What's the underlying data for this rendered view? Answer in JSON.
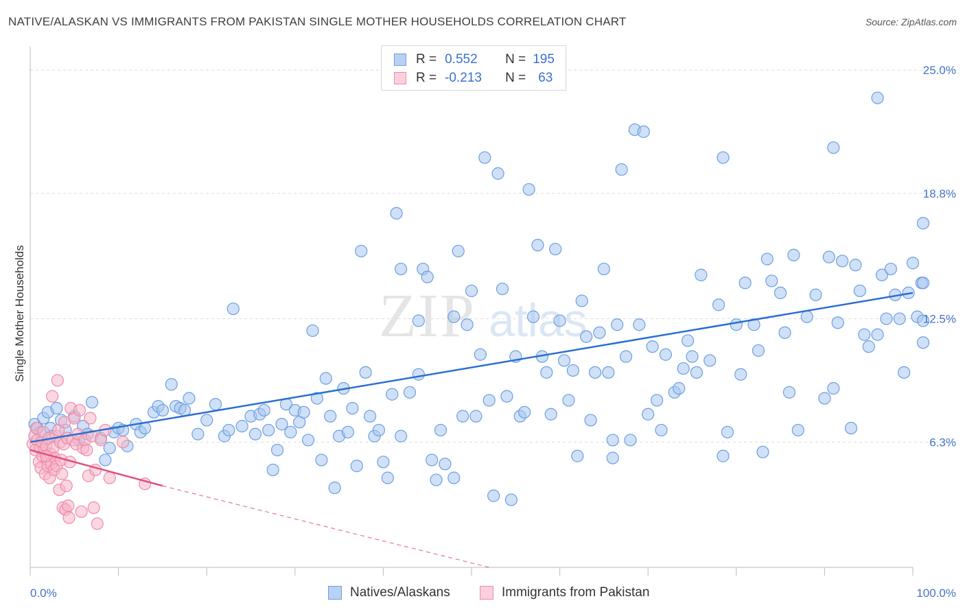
{
  "header": {
    "title": "NATIVE/ALASKAN VS IMMIGRANTS FROM PAKISTAN SINGLE MOTHER HOUSEHOLDS CORRELATION CHART",
    "source": "Source: ZipAtlas.com"
  },
  "watermark": {
    "left": "ZIP",
    "right": "atlas"
  },
  "legend": {
    "rows": [
      {
        "r_label": "R =",
        "r_value": "0.552",
        "n_label": "N =",
        "n_value": "195",
        "color": "#a9c6f0"
      },
      {
        "r_label": "R =",
        "r_value": "-0.213",
        "n_label": "N =",
        "n_value": "63",
        "color": "#f6b6c9"
      }
    ]
  },
  "bottom_legend": {
    "natives": "Natives/Alaskans",
    "pakistan": "Immigrants from Pakistan"
  },
  "chart_data": {
    "type": "scatter",
    "ylabel": "Single Mother Households",
    "xlim": [
      0,
      100
    ],
    "ylim": [
      0,
      25.9
    ],
    "y_ticks": [
      {
        "value": 6.3,
        "label": "6.3%"
      },
      {
        "value": 12.5,
        "label": "12.5%"
      },
      {
        "value": 18.8,
        "label": "18.8%"
      },
      {
        "value": 25.0,
        "label": "25.0%"
      }
    ],
    "x_tick_labels": {
      "min": "0.0%",
      "max": "100.0%"
    },
    "grid": true,
    "series": [
      {
        "name": "Natives/Alaskans",
        "color": "#6a9fe0",
        "fill": "#a9c6f0",
        "trend": {
          "x0": 0,
          "y0": 6.3,
          "x1": 100,
          "y1": 13.8,
          "color": "#2a6fd1"
        },
        "points": [
          [
            0.5,
            7.2
          ],
          [
            0.8,
            7.0
          ],
          [
            1.2,
            6.8
          ],
          [
            1.5,
            7.5
          ],
          [
            2,
            7.8
          ],
          [
            2.3,
            7.0
          ],
          [
            2.5,
            6.6
          ],
          [
            3,
            8.0
          ],
          [
            3.5,
            7.4
          ],
          [
            4,
            6.9
          ],
          [
            5,
            7.6
          ],
          [
            5.5,
            6.4
          ],
          [
            6,
            7.1
          ],
          [
            6.5,
            6.7
          ],
          [
            7,
            8.3
          ],
          [
            8,
            6.5
          ],
          [
            8.5,
            5.4
          ],
          [
            9,
            6.0
          ],
          [
            9.5,
            6.8
          ],
          [
            10,
            7.0
          ],
          [
            10.5,
            6.9
          ],
          [
            11,
            6.1
          ],
          [
            12,
            7.2
          ],
          [
            12.5,
            6.8
          ],
          [
            13,
            7.0
          ],
          [
            14,
            7.8
          ],
          [
            14.5,
            8.1
          ],
          [
            15,
            7.9
          ],
          [
            16,
            9.2
          ],
          [
            16.5,
            8.1
          ],
          [
            17,
            8.0
          ],
          [
            17.5,
            7.9
          ],
          [
            18,
            8.5
          ],
          [
            19,
            6.7
          ],
          [
            20,
            7.4
          ],
          [
            21,
            8.2
          ],
          [
            22,
            6.6
          ],
          [
            22.5,
            6.9
          ],
          [
            23,
            13.0
          ],
          [
            24,
            7.1
          ],
          [
            25,
            7.6
          ],
          [
            25.5,
            6.7
          ],
          [
            26,
            7.7
          ],
          [
            26.5,
            7.9
          ],
          [
            27,
            6.9
          ],
          [
            27.5,
            4.9
          ],
          [
            28,
            5.9
          ],
          [
            28.5,
            7.2
          ],
          [
            29,
            8.2
          ],
          [
            29.5,
            6.8
          ],
          [
            30,
            7.9
          ],
          [
            30.5,
            7.3
          ],
          [
            31,
            7.8
          ],
          [
            31.5,
            6.4
          ],
          [
            32,
            11.9
          ],
          [
            32.5,
            8.5
          ],
          [
            33,
            5.4
          ],
          [
            33.5,
            9.5
          ],
          [
            34,
            7.6
          ],
          [
            34.5,
            4.0
          ],
          [
            35,
            6.6
          ],
          [
            35.5,
            9.0
          ],
          [
            36,
            6.8
          ],
          [
            36.5,
            8.0
          ],
          [
            37,
            5.1
          ],
          [
            37.5,
            15.9
          ],
          [
            38,
            9.8
          ],
          [
            38.5,
            7.6
          ],
          [
            39,
            6.6
          ],
          [
            39.5,
            6.9
          ],
          [
            40,
            5.3
          ],
          [
            40.5,
            4.5
          ],
          [
            41,
            8.7
          ],
          [
            41.5,
            17.8
          ],
          [
            42,
            6.6
          ],
          [
            43,
            8.8
          ],
          [
            44,
            12.4
          ],
          [
            44.5,
            15.0
          ],
          [
            45,
            14.6
          ],
          [
            45.5,
            5.4
          ],
          [
            46,
            4.4
          ],
          [
            46.5,
            6.9
          ],
          [
            47,
            5.2
          ],
          [
            48,
            12.6
          ],
          [
            48.5,
            15.9
          ],
          [
            49,
            7.6
          ],
          [
            49.5,
            12.2
          ],
          [
            50,
            13.9
          ],
          [
            50.5,
            7.6
          ],
          [
            51,
            10.7
          ],
          [
            51.5,
            20.6
          ],
          [
            52,
            8.4
          ],
          [
            52.5,
            3.6
          ],
          [
            53,
            19.8
          ],
          [
            53.5,
            14.0
          ],
          [
            54,
            8.6
          ],
          [
            54.5,
            3.4
          ],
          [
            55,
            10.6
          ],
          [
            55.5,
            7.6
          ],
          [
            56,
            7.8
          ],
          [
            56.5,
            19.0
          ],
          [
            57,
            12.6
          ],
          [
            57.5,
            16.2
          ],
          [
            58,
            10.6
          ],
          [
            58.5,
            9.8
          ],
          [
            59,
            7.7
          ],
          [
            59.5,
            16.0
          ],
          [
            60,
            12.4
          ],
          [
            60.5,
            10.4
          ],
          [
            61,
            8.4
          ],
          [
            61.5,
            9.9
          ],
          [
            62,
            5.6
          ],
          [
            62.5,
            13.4
          ],
          [
            63,
            11.6
          ],
          [
            63.5,
            7.4
          ],
          [
            64,
            9.8
          ],
          [
            64.5,
            11.8
          ],
          [
            65,
            15.0
          ],
          [
            65.5,
            9.8
          ],
          [
            66,
            6.4
          ],
          [
            66.5,
            12.2
          ],
          [
            67,
            20.0
          ],
          [
            67.5,
            10.6
          ],
          [
            68,
            6.4
          ],
          [
            68.5,
            22.0
          ],
          [
            69,
            12.2
          ],
          [
            69.5,
            21.9
          ],
          [
            70,
            7.7
          ],
          [
            70.5,
            11.1
          ],
          [
            71,
            8.4
          ],
          [
            71.5,
            6.9
          ],
          [
            72,
            10.7
          ],
          [
            73,
            8.8
          ],
          [
            73.5,
            9.0
          ],
          [
            74,
            10.0
          ],
          [
            74.5,
            11.4
          ],
          [
            75,
            10.6
          ],
          [
            75.5,
            9.8
          ],
          [
            76,
            14.7
          ],
          [
            77,
            10.4
          ],
          [
            78,
            13.2
          ],
          [
            78.5,
            5.6
          ],
          [
            79,
            6.8
          ],
          [
            80,
            12.2
          ],
          [
            80.5,
            9.7
          ],
          [
            81,
            14.3
          ],
          [
            82,
            12.2
          ],
          [
            82.5,
            10.9
          ],
          [
            83,
            5.8
          ],
          [
            83.5,
            15.5
          ],
          [
            84,
            14.4
          ],
          [
            85,
            13.8
          ],
          [
            85.5,
            11.8
          ],
          [
            86,
            8.8
          ],
          [
            86.5,
            15.7
          ],
          [
            87,
            6.9
          ],
          [
            88,
            12.6
          ],
          [
            89,
            13.7
          ],
          [
            90,
            8.5
          ],
          [
            90.5,
            15.6
          ],
          [
            91,
            9.0
          ],
          [
            91.5,
            12.3
          ],
          [
            92,
            15.4
          ],
          [
            93,
            7.0
          ],
          [
            93.5,
            15.2
          ],
          [
            94,
            13.9
          ],
          [
            94.5,
            11.7
          ],
          [
            95,
            11.1
          ],
          [
            96,
            11.7
          ],
          [
            96.5,
            14.7
          ],
          [
            97,
            12.5
          ],
          [
            97.5,
            15.0
          ],
          [
            98,
            13.7
          ],
          [
            98.5,
            12.5
          ],
          [
            99,
            9.8
          ],
          [
            99.5,
            13.8
          ],
          [
            100,
            15.3
          ],
          [
            100.5,
            12.6
          ],
          [
            101,
            14.3
          ],
          [
            101.5,
            12.4
          ],
          [
            102,
            11.3
          ],
          [
            102.5,
            17.3
          ],
          [
            103,
            14.3
          ],
          [
            96,
            23.6
          ],
          [
            91,
            21.1
          ],
          [
            78.5,
            20.6
          ],
          [
            66,
            5.5
          ],
          [
            48,
            4.5
          ],
          [
            42,
            15.0
          ],
          [
            44,
            9.7
          ]
        ]
      },
      {
        "name": "Immigrants from Pakistan",
        "color": "#ee8aa8",
        "fill": "#f6b6c9",
        "trend": {
          "x0": 0,
          "y0": 5.9,
          "x1": 15,
          "y1": 4.1,
          "dash_to_x": 52,
          "dash_to_y": 0,
          "color": "#e0507e"
        },
        "points": [
          [
            0.3,
            6.2
          ],
          [
            0.5,
            6.6
          ],
          [
            0.6,
            5.9
          ],
          [
            0.7,
            7.0
          ],
          [
            0.8,
            6.4
          ],
          [
            1,
            5.3
          ],
          [
            1.1,
            6.0
          ],
          [
            1.2,
            5.0
          ],
          [
            1.3,
            6.3
          ],
          [
            1.4,
            5.6
          ],
          [
            1.5,
            6.8
          ],
          [
            1.6,
            5.9
          ],
          [
            1.7,
            4.7
          ],
          [
            1.8,
            6.1
          ],
          [
            1.9,
            5.4
          ],
          [
            2,
            5.1
          ],
          [
            2.1,
            6.5
          ],
          [
            2.2,
            4.5
          ],
          [
            2.3,
            5.7
          ],
          [
            2.4,
            5.2
          ],
          [
            2.5,
            8.6
          ],
          [
            2.6,
            6.0
          ],
          [
            2.7,
            4.9
          ],
          [
            2.8,
            5.5
          ],
          [
            2.9,
            6.6
          ],
          [
            3,
            5.1
          ],
          [
            3.1,
            9.4
          ],
          [
            3.2,
            6.9
          ],
          [
            3.3,
            3.9
          ],
          [
            3.4,
            6.3
          ],
          [
            3.5,
            5.4
          ],
          [
            3.6,
            4.7
          ],
          [
            3.7,
            3.0
          ],
          [
            3.8,
            6.2
          ],
          [
            3.9,
            7.3
          ],
          [
            4,
            2.9
          ],
          [
            4.1,
            4.1
          ],
          [
            4.2,
            6.5
          ],
          [
            4.3,
            3.1
          ],
          [
            4.4,
            2.5
          ],
          [
            4.5,
            5.3
          ],
          [
            4.6,
            8.0
          ],
          [
            4.8,
            6.4
          ],
          [
            5,
            7.5
          ],
          [
            5.2,
            6.2
          ],
          [
            5.4,
            6.7
          ],
          [
            5.6,
            7.9
          ],
          [
            5.8,
            2.8
          ],
          [
            6,
            6.0
          ],
          [
            6.2,
            6.4
          ],
          [
            6.4,
            5.9
          ],
          [
            6.6,
            4.6
          ],
          [
            6.8,
            7.5
          ],
          [
            7,
            6.6
          ],
          [
            7.2,
            3.0
          ],
          [
            7.4,
            4.9
          ],
          [
            7.6,
            2.2
          ],
          [
            8,
            6.4
          ],
          [
            8.5,
            6.9
          ],
          [
            9,
            4.5
          ],
          [
            10.5,
            6.3
          ],
          [
            13,
            4.2
          ],
          [
            1.8,
            5.6
          ]
        ]
      }
    ]
  }
}
